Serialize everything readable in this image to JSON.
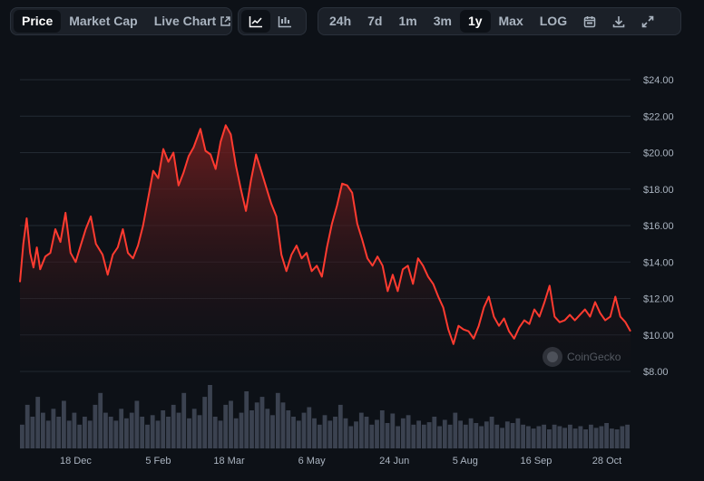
{
  "toolbar": {
    "metric_tabs": [
      {
        "label": "Price",
        "active": true
      },
      {
        "label": "Market Cap",
        "active": false
      },
      {
        "label": "Live Chart",
        "active": false,
        "icon": "external-link-icon"
      }
    ],
    "chart_type_buttons": [
      {
        "icon": "line-chart-icon",
        "active": true
      },
      {
        "icon": "candlestick-chart-icon",
        "active": false
      }
    ],
    "range_buttons": [
      {
        "label": "24h",
        "active": false
      },
      {
        "label": "7d",
        "active": false
      },
      {
        "label": "1m",
        "active": false
      },
      {
        "label": "3m",
        "active": false
      },
      {
        "label": "1y",
        "active": true
      },
      {
        "label": "Max",
        "active": false
      },
      {
        "label": "LOG",
        "active": false
      }
    ],
    "tool_icons": [
      "calendar-icon",
      "download-icon",
      "expand-icon"
    ]
  },
  "watermark": {
    "text": "CoinGecko"
  },
  "colors": {
    "line": "#ff3b30",
    "fill_top": "#6b1f1f",
    "background": "#0d1117",
    "grid": "#232a33",
    "volume": "#3b4250",
    "axis_text": "#aab4c0"
  },
  "chart_data": {
    "type": "area",
    "title": "",
    "xlabel": "",
    "ylabel": "",
    "ylim": [
      8,
      24
    ],
    "y_ticks": [
      "$24.00",
      "$22.00",
      "$20.00",
      "$18.00",
      "$16.00",
      "$14.00",
      "$12.00",
      "$10.00",
      "$8.00"
    ],
    "y_tick_values": [
      24,
      22,
      20,
      18,
      16,
      14,
      12,
      10,
      8
    ],
    "x_ticks": [
      "18 Dec",
      "5 Feb",
      "18 Mar",
      "6 May",
      "24 Jun",
      "5 Aug",
      "16 Sep",
      "28 Oct"
    ],
    "x_tick_dates": [
      "2023-12-18",
      "2024-02-05",
      "2024-03-18",
      "2024-05-06",
      "2024-06-24",
      "2024-08-05",
      "2024-09-16",
      "2024-10-28"
    ],
    "grid": true,
    "series": [
      {
        "values": [
          [
            "2023-11-15",
            12.9
          ],
          [
            "2023-11-17",
            15.0
          ],
          [
            "2023-11-19",
            16.4
          ],
          [
            "2023-11-21",
            14.5
          ],
          [
            "2023-11-23",
            13.7
          ],
          [
            "2023-11-25",
            14.8
          ],
          [
            "2023-11-27",
            13.6
          ],
          [
            "2023-11-30",
            14.3
          ],
          [
            "2023-12-03",
            14.5
          ],
          [
            "2023-12-06",
            15.8
          ],
          [
            "2023-12-09",
            15.1
          ],
          [
            "2023-12-12",
            16.7
          ],
          [
            "2023-12-15",
            14.5
          ],
          [
            "2023-12-18",
            14.0
          ],
          [
            "2023-12-21",
            14.9
          ],
          [
            "2023-12-24",
            15.8
          ],
          [
            "2023-12-27",
            16.5
          ],
          [
            "2023-12-30",
            15.0
          ],
          [
            "2024-01-03",
            14.4
          ],
          [
            "2024-01-06",
            13.3
          ],
          [
            "2024-01-09",
            14.4
          ],
          [
            "2024-01-12",
            14.8
          ],
          [
            "2024-01-15",
            15.8
          ],
          [
            "2024-01-18",
            14.5
          ],
          [
            "2024-01-21",
            14.2
          ],
          [
            "2024-01-24",
            14.9
          ],
          [
            "2024-01-27",
            16.0
          ],
          [
            "2024-01-30",
            17.5
          ],
          [
            "2024-02-02",
            19.0
          ],
          [
            "2024-02-05",
            18.6
          ],
          [
            "2024-02-08",
            20.2
          ],
          [
            "2024-02-11",
            19.5
          ],
          [
            "2024-02-14",
            20.0
          ],
          [
            "2024-02-17",
            18.2
          ],
          [
            "2024-02-20",
            18.9
          ],
          [
            "2024-02-23",
            19.8
          ],
          [
            "2024-02-26",
            20.3
          ],
          [
            "2024-03-01",
            21.3
          ],
          [
            "2024-03-04",
            20.1
          ],
          [
            "2024-03-07",
            19.9
          ],
          [
            "2024-03-10",
            19.1
          ],
          [
            "2024-03-13",
            20.6
          ],
          [
            "2024-03-16",
            21.5
          ],
          [
            "2024-03-19",
            21.0
          ],
          [
            "2024-03-22",
            19.3
          ],
          [
            "2024-03-25",
            18.0
          ],
          [
            "2024-03-28",
            16.8
          ],
          [
            "2024-03-31",
            18.5
          ],
          [
            "2024-04-03",
            19.9
          ],
          [
            "2024-04-06",
            19.0
          ],
          [
            "2024-04-09",
            18.1
          ],
          [
            "2024-04-12",
            17.2
          ],
          [
            "2024-04-15",
            16.5
          ],
          [
            "2024-04-18",
            14.4
          ],
          [
            "2024-04-21",
            13.5
          ],
          [
            "2024-04-24",
            14.4
          ],
          [
            "2024-04-27",
            14.9
          ],
          [
            "2024-04-30",
            14.2
          ],
          [
            "2024-05-03",
            14.5
          ],
          [
            "2024-05-06",
            13.5
          ],
          [
            "2024-05-09",
            13.8
          ],
          [
            "2024-05-12",
            13.2
          ],
          [
            "2024-05-15",
            14.8
          ],
          [
            "2024-05-18",
            16.1
          ],
          [
            "2024-05-21",
            17.1
          ],
          [
            "2024-05-24",
            18.3
          ],
          [
            "2024-05-27",
            18.2
          ],
          [
            "2024-05-30",
            17.8
          ],
          [
            "2024-06-02",
            16.1
          ],
          [
            "2024-06-05",
            15.2
          ],
          [
            "2024-06-08",
            14.2
          ],
          [
            "2024-06-11",
            13.8
          ],
          [
            "2024-06-14",
            14.3
          ],
          [
            "2024-06-17",
            13.8
          ],
          [
            "2024-06-20",
            12.4
          ],
          [
            "2024-06-23",
            13.3
          ],
          [
            "2024-06-26",
            12.4
          ],
          [
            "2024-06-29",
            13.6
          ],
          [
            "2024-07-02",
            13.8
          ],
          [
            "2024-07-05",
            12.8
          ],
          [
            "2024-07-08",
            14.2
          ],
          [
            "2024-07-11",
            13.8
          ],
          [
            "2024-07-14",
            13.2
          ],
          [
            "2024-07-17",
            12.8
          ],
          [
            "2024-07-20",
            12.1
          ],
          [
            "2024-07-23",
            11.5
          ],
          [
            "2024-07-26",
            10.3
          ],
          [
            "2024-07-29",
            9.5
          ],
          [
            "2024-08-01",
            10.5
          ],
          [
            "2024-08-04",
            10.3
          ],
          [
            "2024-08-07",
            10.2
          ],
          [
            "2024-08-10",
            9.8
          ],
          [
            "2024-08-13",
            10.5
          ],
          [
            "2024-08-16",
            11.5
          ],
          [
            "2024-08-19",
            12.1
          ],
          [
            "2024-08-22",
            11.0
          ],
          [
            "2024-08-25",
            10.5
          ],
          [
            "2024-08-28",
            10.9
          ],
          [
            "2024-08-31",
            10.2
          ],
          [
            "2024-09-03",
            9.8
          ],
          [
            "2024-09-06",
            10.4
          ],
          [
            "2024-09-09",
            10.8
          ],
          [
            "2024-09-12",
            10.6
          ],
          [
            "2024-09-15",
            11.4
          ],
          [
            "2024-09-18",
            11.0
          ],
          [
            "2024-09-21",
            11.8
          ],
          [
            "2024-09-24",
            12.7
          ],
          [
            "2024-09-27",
            11.0
          ],
          [
            "2024-09-30",
            10.7
          ],
          [
            "2024-10-03",
            10.8
          ],
          [
            "2024-10-06",
            11.1
          ],
          [
            "2024-10-09",
            10.8
          ],
          [
            "2024-10-12",
            11.1
          ],
          [
            "2024-10-15",
            11.4
          ],
          [
            "2024-10-18",
            11.0
          ],
          [
            "2024-10-21",
            11.8
          ],
          [
            "2024-10-24",
            11.2
          ],
          [
            "2024-10-27",
            10.8
          ],
          [
            "2024-10-30",
            11.0
          ],
          [
            "2024-11-02",
            12.1
          ],
          [
            "2024-11-05",
            11.0
          ],
          [
            "2024-11-08",
            10.7
          ],
          [
            "2024-11-11",
            10.2
          ]
        ]
      }
    ],
    "volume": {
      "values": [
        30,
        55,
        40,
        65,
        45,
        35,
        50,
        40,
        60,
        35,
        45,
        30,
        40,
        35,
        55,
        70,
        45,
        40,
        35,
        50,
        38,
        45,
        60,
        40,
        30,
        42,
        35,
        48,
        40,
        55,
        45,
        70,
        38,
        50,
        42,
        65,
        80,
        40,
        35,
        55,
        60,
        38,
        45,
        72,
        48,
        58,
        65,
        50,
        42,
        70,
        58,
        48,
        40,
        35,
        45,
        52,
        38,
        30,
        42,
        35,
        40,
        55,
        38,
        28,
        34,
        45,
        40,
        30,
        36,
        48,
        32,
        44,
        28,
        38,
        42,
        30,
        35,
        30,
        33,
        40,
        28,
        36,
        30,
        45,
        35,
        30,
        38,
        32,
        28,
        34,
        40,
        30,
        26,
        34,
        32,
        38,
        30,
        28,
        25,
        28,
        30,
        24,
        30,
        28,
        26,
        30,
        25,
        28,
        24,
        30,
        26,
        28,
        32,
        25,
        24,
        28,
        30
      ]
    }
  }
}
